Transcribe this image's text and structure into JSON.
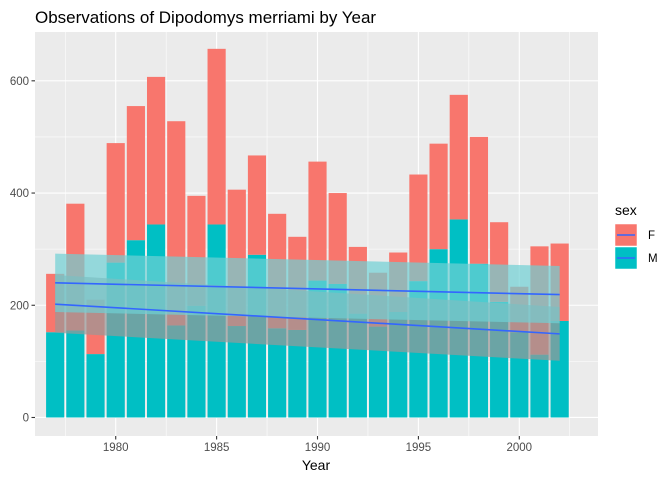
{
  "chart_data": {
    "type": "bar",
    "subtype": "stacked-bar-with-linear-smooth",
    "title": "Observations of Dipodomys merriami by Year",
    "xlabel": "Year",
    "ylabel": "",
    "xlim": [
      1976.0,
      2003.9
    ],
    "ylim": [
      -33,
      687
    ],
    "xticks": [
      1980,
      1985,
      1990,
      1995,
      2000
    ],
    "yticks": [
      0,
      200,
      400,
      600
    ],
    "grid": true,
    "legend": {
      "title": "sex",
      "position": "right"
    },
    "categories": [
      1977,
      1978,
      1979,
      1980,
      1981,
      1982,
      1983,
      1984,
      1985,
      1986,
      1987,
      1988,
      1989,
      1990,
      1991,
      1992,
      1993,
      1994,
      1995,
      1996,
      1997,
      1998,
      1999,
      2000,
      2001,
      2002
    ],
    "series": [
      {
        "name": "F",
        "color": "#F8766D",
        "values": [
          104,
          226,
          97,
          213,
          239,
          263,
          364,
          196,
          313,
          243,
          177,
          204,
          166,
          212,
          162,
          119,
          96,
          106,
          190,
          188,
          222,
          226,
          142,
          81,
          193,
          138
        ]
      },
      {
        "name": "M",
        "color": "#00BFC4",
        "values": [
          152,
          155,
          113,
          276,
          316,
          344,
          164,
          199,
          344,
          163,
          290,
          159,
          156,
          244,
          238,
          185,
          162,
          188,
          243,
          300,
          353,
          274,
          206,
          152,
          112,
          172
        ]
      }
    ],
    "trend_lines": [
      {
        "name": "F",
        "color": "#3366FF",
        "band_color": "#999999",
        "x": [
          1977,
          2002
        ],
        "y": [
          202,
          149
        ],
        "ci_lower": [
          151,
          101
        ],
        "ci_upper": [
          254,
          197
        ]
      },
      {
        "name": "M",
        "color": "#3366FF",
        "band_color": "#6fd0d4",
        "x": [
          1977,
          2002
        ],
        "y": [
          240,
          219
        ],
        "ci_lower": [
          188,
          168
        ],
        "ci_upper": [
          292,
          270
        ]
      }
    ]
  }
}
